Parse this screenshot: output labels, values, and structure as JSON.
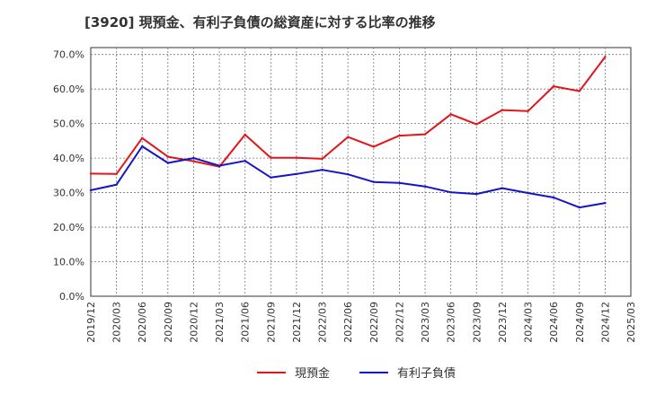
{
  "chart_data": {
    "type": "line",
    "title": "[3920]  現預金、有利子負債の総資産に対する比率の推移",
    "xlabel": "",
    "ylabel": "",
    "ylim": [
      0,
      72
    ],
    "y_ticks": [
      0,
      10,
      20,
      30,
      40,
      50,
      60,
      70
    ],
    "y_tick_labels": [
      "0.0%",
      "10.0%",
      "20.0%",
      "30.0%",
      "40.0%",
      "50.0%",
      "60.0%",
      "70.0%"
    ],
    "categories": [
      "2019/12",
      "2020/03",
      "2020/06",
      "2020/09",
      "2020/12",
      "2021/03",
      "2021/06",
      "2021/09",
      "2021/12",
      "2022/03",
      "2022/06",
      "2022/09",
      "2022/12",
      "2023/03",
      "2023/06",
      "2023/09",
      "2023/12",
      "2024/03",
      "2024/06",
      "2024/09",
      "2024/12",
      "2025/03"
    ],
    "grid": true,
    "legend_position": "bottom",
    "series": [
      {
        "name": "現預金",
        "color": "#e0161b",
        "values": [
          35.5,
          35.4,
          45.8,
          40.4,
          39.1,
          37.5,
          46.8,
          40.1,
          40.1,
          39.8,
          46.1,
          43.3,
          46.5,
          46.9,
          52.7,
          49.8,
          53.9,
          53.6,
          60.8,
          59.4,
          69.3,
          null
        ]
      },
      {
        "name": "有利子負債",
        "color": "#1515c8",
        "values": [
          30.7,
          32.3,
          43.4,
          38.6,
          40.0,
          37.8,
          39.2,
          34.4,
          35.4,
          36.6,
          35.3,
          33.1,
          32.8,
          31.8,
          30.1,
          29.6,
          31.3,
          29.9,
          28.6,
          25.7,
          27.0,
          null
        ]
      }
    ]
  }
}
